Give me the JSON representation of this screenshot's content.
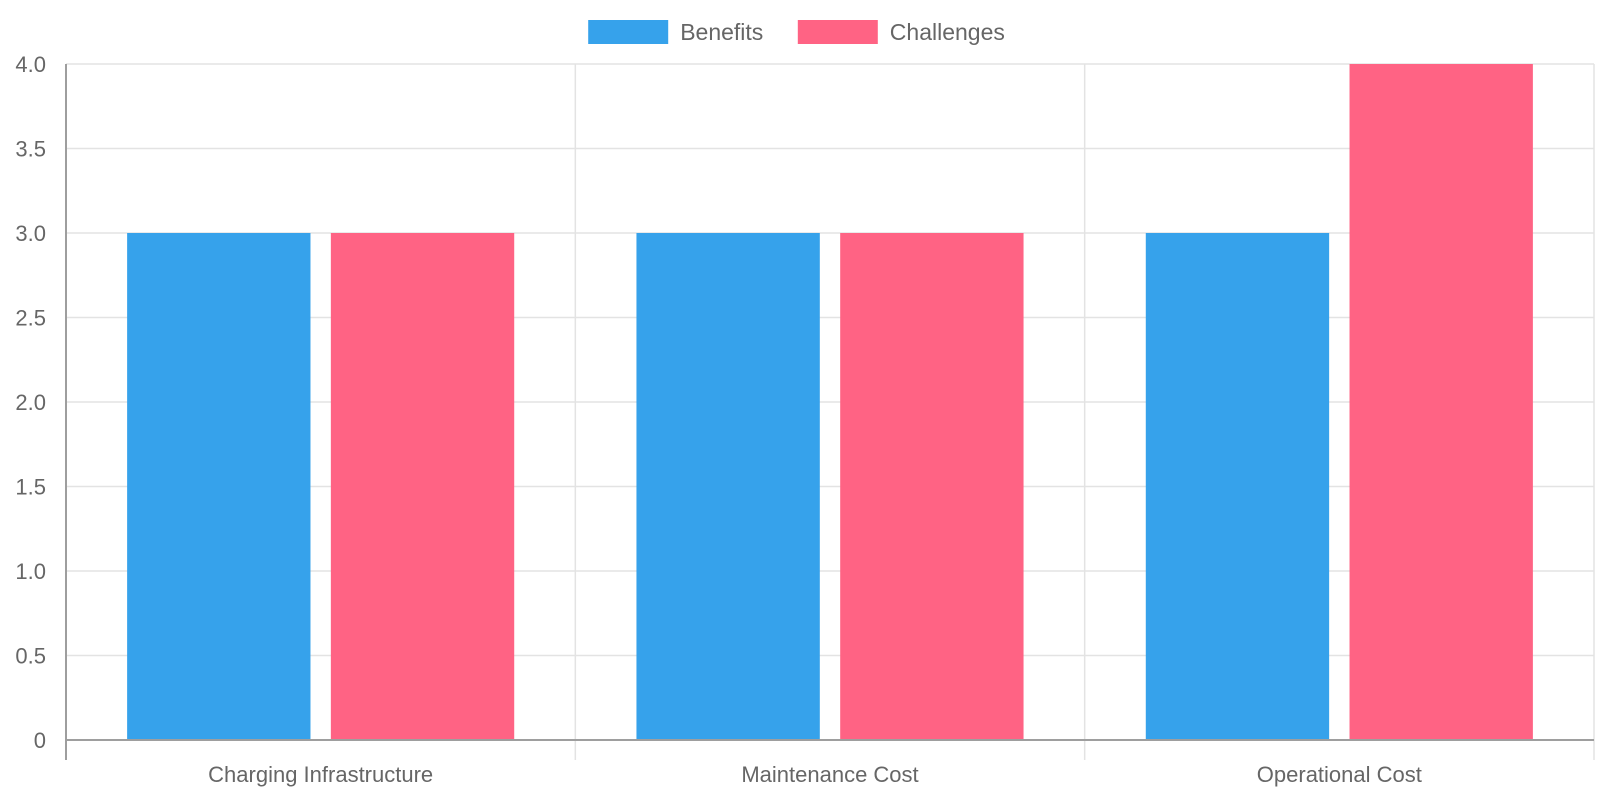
{
  "chart_data": {
    "type": "bar",
    "categories": [
      "Charging Infrastructure",
      "Maintenance Cost",
      "Operational Cost"
    ],
    "series": [
      {
        "name": "Benefits",
        "values": [
          3,
          3,
          3
        ],
        "color": "#36a2eb"
      },
      {
        "name": "Challenges",
        "values": [
          3,
          3,
          4
        ],
        "color": "#ff6384"
      }
    ],
    "title": "",
    "xlabel": "",
    "ylabel": "",
    "ylim": [
      0,
      4
    ],
    "yticks": [
      "0",
      "0.5",
      "1.0",
      "1.5",
      "2.0",
      "2.5",
      "3.0",
      "3.5",
      "4.0"
    ],
    "grid": true,
    "legend": "top-center",
    "colors": {
      "grid": "#e3e3e3",
      "axis": "#9e9e9e",
      "text": "#666666"
    }
  }
}
